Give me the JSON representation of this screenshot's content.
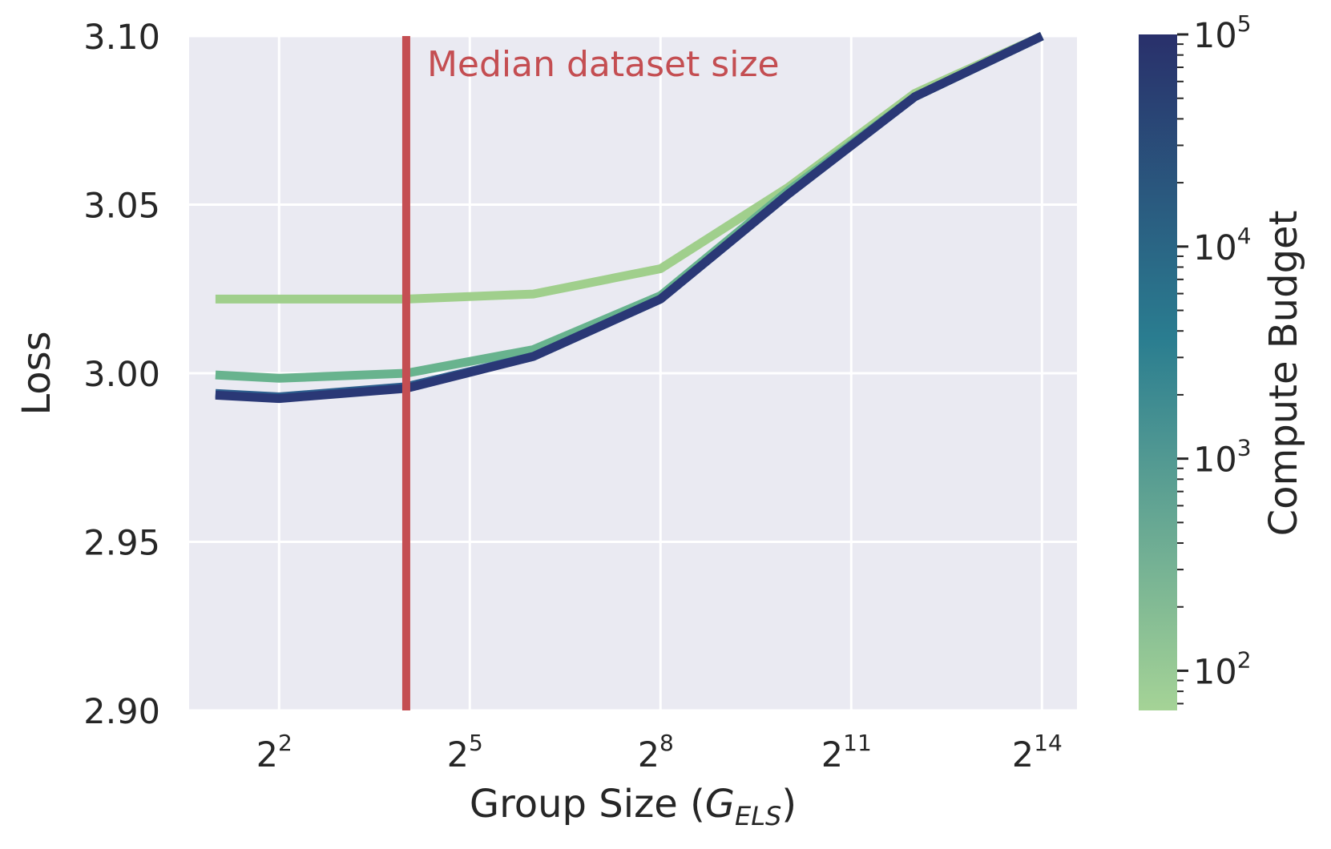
{
  "chart_data": {
    "type": "line",
    "xlabel": "Group Size (",
    "xlabel_var": "G",
    "xlabel_sub": "ELS",
    "xlabel_close": ")",
    "ylabel": "Loss",
    "x_scale": "log2",
    "ylim": [
      2.9,
      3.1
    ],
    "xlim": [
      1.5,
      24000
    ],
    "grid": true,
    "background": "#eaeaf2",
    "x_ticks": [
      {
        "base": "2",
        "exp": "2",
        "value": 4
      },
      {
        "base": "2",
        "exp": "5",
        "value": 32
      },
      {
        "base": "2",
        "exp": "8",
        "value": 256
      },
      {
        "base": "2",
        "exp": "11",
        "value": 2048
      },
      {
        "base": "2",
        "exp": "14",
        "value": 16384
      }
    ],
    "y_ticks": [
      "2.90",
      "2.95",
      "3.00",
      "3.05",
      "3.10"
    ],
    "series": [
      {
        "color": "#a0cf8c",
        "compute": 100,
        "x": [
          2,
          4,
          16,
          64,
          256,
          1024,
          4096,
          16384
        ],
        "y": [
          3.022,
          3.022,
          3.022,
          3.0235,
          3.031,
          3.055,
          3.083,
          3.1
        ]
      },
      {
        "color": "#68b38e",
        "compute": 600,
        "x": [
          2,
          4,
          16,
          64,
          256,
          1024,
          4096,
          16384
        ],
        "y": [
          2.9995,
          2.9985,
          3.0,
          3.007,
          3.023,
          3.054,
          3.082,
          3.1
        ]
      },
      {
        "color": "#2d5f8e",
        "compute": 10000,
        "x": [
          2,
          4,
          16,
          64,
          256,
          1024,
          4096,
          16384
        ],
        "y": [
          2.994,
          2.993,
          2.996,
          3.005,
          3.022,
          3.053,
          3.082,
          3.1
        ]
      },
      {
        "color": "#2a3876",
        "compute": 100000,
        "x": [
          2,
          4,
          16,
          64,
          256,
          1024,
          4096,
          16384
        ],
        "y": [
          2.9935,
          2.9925,
          2.9955,
          3.005,
          3.022,
          3.053,
          3.082,
          3.1
        ]
      }
    ],
    "vline": {
      "x": 16,
      "color": "#c44e52",
      "label": "Median dataset size"
    },
    "colorbar": {
      "label": "Compute Budget",
      "scale": "log",
      "range": [
        65,
        100000
      ],
      "ticks": [
        {
          "base": "10",
          "exp": "2",
          "value": 100
        },
        {
          "base": "10",
          "exp": "3",
          "value": 1000
        },
        {
          "base": "10",
          "exp": "4",
          "value": 10000
        },
        {
          "base": "10",
          "exp": "5",
          "value": 100000
        }
      ],
      "color_low": "#a5d396",
      "color_mid": "#2a7d90",
      "color_high": "#29306b"
    }
  }
}
